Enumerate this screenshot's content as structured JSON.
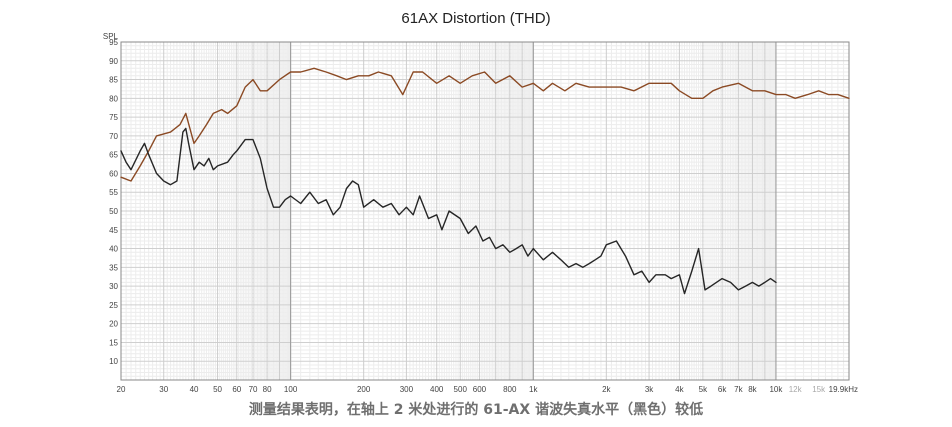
{
  "chart_data": {
    "type": "line",
    "title": "61AX Distortion (THD)",
    "ylabel": "SPL",
    "x_scale": "log",
    "xlim": [
      20,
      20000
    ],
    "ylim": [
      5,
      95
    ],
    "grid": true,
    "y_ticks": [
      10,
      15,
      20,
      25,
      30,
      35,
      40,
      45,
      50,
      55,
      60,
      65,
      70,
      75,
      80,
      85,
      90,
      95
    ],
    "x_ticks": [
      {
        "value": 20,
        "label": "20",
        "light": false
      },
      {
        "value": 30,
        "label": "30",
        "light": false
      },
      {
        "value": 40,
        "label": "40",
        "light": false
      },
      {
        "value": 50,
        "label": "50",
        "light": false
      },
      {
        "value": 60,
        "label": "60",
        "light": false
      },
      {
        "value": 70,
        "label": "70",
        "light": false
      },
      {
        "value": 80,
        "label": "80",
        "light": false
      },
      {
        "value": 100,
        "label": "100",
        "light": false
      },
      {
        "value": 200,
        "label": "200",
        "light": false
      },
      {
        "value": 300,
        "label": "300",
        "light": false
      },
      {
        "value": 400,
        "label": "400",
        "light": false
      },
      {
        "value": 500,
        "label": "500",
        "light": false
      },
      {
        "value": 600,
        "label": "600",
        "light": false
      },
      {
        "value": 800,
        "label": "800",
        "light": false
      },
      {
        "value": 1000,
        "label": "1k",
        "light": false
      },
      {
        "value": 2000,
        "label": "2k",
        "light": false
      },
      {
        "value": 3000,
        "label": "3k",
        "light": false
      },
      {
        "value": 4000,
        "label": "4k",
        "light": false
      },
      {
        "value": 5000,
        "label": "5k",
        "light": false
      },
      {
        "value": 6000,
        "label": "6k",
        "light": false
      },
      {
        "value": 7000,
        "label": "7k",
        "light": false
      },
      {
        "value": 8000,
        "label": "8k",
        "light": false
      },
      {
        "value": 10000,
        "label": "10k",
        "light": false
      },
      {
        "value": 12000,
        "label": "12k",
        "light": true
      },
      {
        "value": 15000,
        "label": "15k",
        "light": true
      },
      {
        "value": 20000,
        "label": "19.9kHz",
        "light": false
      }
    ],
    "series": [
      {
        "color": "#8b4a24",
        "points": [
          [
            20,
            59
          ],
          [
            22,
            58
          ],
          [
            24,
            62
          ],
          [
            26,
            66
          ],
          [
            28,
            70
          ],
          [
            32,
            71
          ],
          [
            35,
            73
          ],
          [
            37,
            76
          ],
          [
            40,
            68
          ],
          [
            42,
            70
          ],
          [
            45,
            73
          ],
          [
            48,
            76
          ],
          [
            52,
            77
          ],
          [
            55,
            76
          ],
          [
            60,
            78
          ],
          [
            65,
            83
          ],
          [
            70,
            85
          ],
          [
            75,
            82
          ],
          [
            80,
            82
          ],
          [
            90,
            85
          ],
          [
            100,
            87
          ],
          [
            110,
            87
          ],
          [
            125,
            88
          ],
          [
            140,
            87
          ],
          [
            155,
            86
          ],
          [
            170,
            85
          ],
          [
            190,
            86
          ],
          [
            210,
            86
          ],
          [
            230,
            87
          ],
          [
            260,
            86
          ],
          [
            290,
            81
          ],
          [
            320,
            87
          ],
          [
            350,
            87
          ],
          [
            400,
            84
          ],
          [
            450,
            86
          ],
          [
            500,
            84
          ],
          [
            560,
            86
          ],
          [
            630,
            87
          ],
          [
            700,
            84
          ],
          [
            800,
            86
          ],
          [
            900,
            83
          ],
          [
            1000,
            84
          ],
          [
            1100,
            82
          ],
          [
            1200,
            84
          ],
          [
            1350,
            82
          ],
          [
            1500,
            84
          ],
          [
            1700,
            83
          ],
          [
            2000,
            83
          ],
          [
            2300,
            83
          ],
          [
            2600,
            82
          ],
          [
            3000,
            84
          ],
          [
            3300,
            84
          ],
          [
            3700,
            84
          ],
          [
            4000,
            82
          ],
          [
            4500,
            80
          ],
          [
            5000,
            80
          ],
          [
            5500,
            82
          ],
          [
            6000,
            83
          ],
          [
            7000,
            84
          ],
          [
            8000,
            82
          ],
          [
            9000,
            82
          ],
          [
            10000,
            81
          ],
          [
            11000,
            81
          ],
          [
            12000,
            80
          ],
          [
            13500,
            81
          ],
          [
            15000,
            82
          ],
          [
            16500,
            81
          ],
          [
            18000,
            81
          ],
          [
            20000,
            80
          ]
        ]
      },
      {
        "color": "#262626",
        "points": [
          [
            20,
            66
          ],
          [
            21,
            63
          ],
          [
            22,
            61
          ],
          [
            24,
            66
          ],
          [
            25,
            68
          ],
          [
            26,
            65
          ],
          [
            28,
            60
          ],
          [
            30,
            58
          ],
          [
            32,
            57
          ],
          [
            34,
            58
          ],
          [
            36,
            71
          ],
          [
            37,
            72
          ],
          [
            38,
            68
          ],
          [
            40,
            61
          ],
          [
            42,
            63
          ],
          [
            44,
            62
          ],
          [
            46,
            64
          ],
          [
            48,
            61
          ],
          [
            50,
            62
          ],
          [
            55,
            63
          ],
          [
            58,
            65
          ],
          [
            60,
            66
          ],
          [
            65,
            69
          ],
          [
            70,
            69
          ],
          [
            75,
            64
          ],
          [
            80,
            56
          ],
          [
            85,
            51
          ],
          [
            90,
            51
          ],
          [
            95,
            53
          ],
          [
            100,
            54
          ],
          [
            110,
            52
          ],
          [
            120,
            55
          ],
          [
            130,
            52
          ],
          [
            140,
            53
          ],
          [
            150,
            49
          ],
          [
            160,
            51
          ],
          [
            170,
            56
          ],
          [
            180,
            58
          ],
          [
            190,
            57
          ],
          [
            200,
            51
          ],
          [
            220,
            53
          ],
          [
            240,
            51
          ],
          [
            260,
            52
          ],
          [
            280,
            49
          ],
          [
            300,
            51
          ],
          [
            320,
            49
          ],
          [
            340,
            54
          ],
          [
            370,
            48
          ],
          [
            400,
            49
          ],
          [
            420,
            45
          ],
          [
            450,
            50
          ],
          [
            500,
            48
          ],
          [
            540,
            44
          ],
          [
            580,
            46
          ],
          [
            620,
            42
          ],
          [
            660,
            43
          ],
          [
            700,
            40
          ],
          [
            750,
            41
          ],
          [
            800,
            39
          ],
          [
            850,
            40
          ],
          [
            900,
            41
          ],
          [
            950,
            38
          ],
          [
            1000,
            40
          ],
          [
            1100,
            37
          ],
          [
            1200,
            39
          ],
          [
            1300,
            37
          ],
          [
            1400,
            35
          ],
          [
            1500,
            36
          ],
          [
            1600,
            35
          ],
          [
            1700,
            36
          ],
          [
            1800,
            37
          ],
          [
            1900,
            38
          ],
          [
            2000,
            41
          ],
          [
            2200,
            42
          ],
          [
            2400,
            38
          ],
          [
            2600,
            33
          ],
          [
            2800,
            34
          ],
          [
            3000,
            31
          ],
          [
            3200,
            33
          ],
          [
            3500,
            33
          ],
          [
            3700,
            32
          ],
          [
            4000,
            33
          ],
          [
            4200,
            28
          ],
          [
            4500,
            34
          ],
          [
            4800,
            40
          ],
          [
            5100,
            29
          ],
          [
            5400,
            30
          ],
          [
            6000,
            32
          ],
          [
            6500,
            31
          ],
          [
            7000,
            29
          ],
          [
            7500,
            30
          ],
          [
            8000,
            31
          ],
          [
            8500,
            30
          ],
          [
            9000,
            31
          ],
          [
            9500,
            32
          ],
          [
            10000,
            31
          ]
        ]
      }
    ]
  },
  "caption": "测量结果表明，在轴上 2 米处进行的 61-AX 谐波失真水平（黑色）较低"
}
